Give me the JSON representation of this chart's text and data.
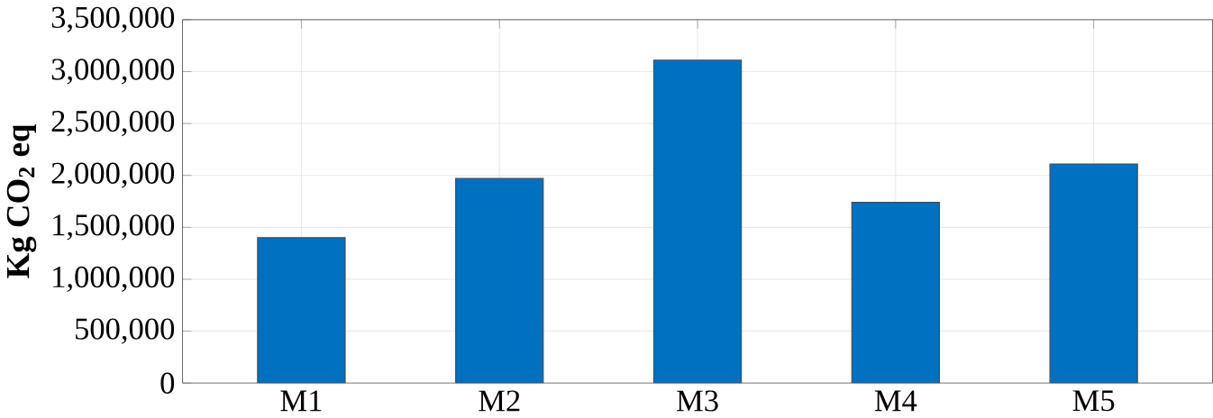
{
  "chart_data": {
    "type": "bar",
    "ylabel": "Kg CO$_{2}$ eq",
    "categories": [
      "M1",
      "M2",
      "M3",
      "M4",
      "M5"
    ],
    "values": [
      1400000,
      1970000,
      3110000,
      1740000,
      2110000
    ],
    "color": "#0070c0",
    "ylim": [
      0,
      3500000
    ],
    "yticks": [
      {
        "value": 0,
        "label": "0"
      },
      {
        "value": 500000,
        "label": "500,000"
      },
      {
        "value": 1000000,
        "label": "1,000,000"
      },
      {
        "value": 1500000,
        "label": "1,500,000"
      },
      {
        "value": 2000000,
        "label": "2,000,000"
      },
      {
        "value": 2500000,
        "label": "2,500,000"
      },
      {
        "value": 3000000,
        "label": "3,000,000"
      },
      {
        "value": 3500000,
        "label": "3,500,000"
      }
    ],
    "grid": true
  }
}
